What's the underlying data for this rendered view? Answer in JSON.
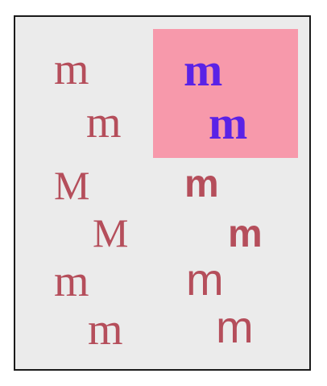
{
  "colors": {
    "background": "#ebebeb",
    "border": "#1a1a1a",
    "highlight": "#f799ab",
    "glyph_muted": "#b54e5b",
    "glyph_accent": "#5a22e6"
  },
  "glyphs": {
    "left": [
      "m",
      "m",
      "M",
      "M",
      "m",
      "m"
    ],
    "right": [
      "m",
      "m",
      "m",
      "m",
      "m",
      "m"
    ]
  }
}
